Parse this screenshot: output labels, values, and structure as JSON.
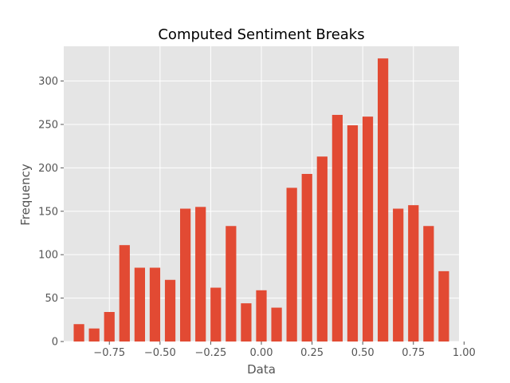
{
  "chart_data": {
    "type": "bar",
    "title": "Computed Sentiment Breaks",
    "xlabel": "Data",
    "ylabel": "Frequency",
    "xlim": [
      -0.975,
      0.975
    ],
    "ylim": [
      0,
      340
    ],
    "xticks": [
      -0.75,
      -0.5,
      -0.25,
      0.0,
      0.25,
      0.5,
      0.75,
      1.0
    ],
    "xtick_labels": [
      "−0.75",
      "−0.50",
      "−0.25",
      "0.00",
      "0.25",
      "0.50",
      "0.75",
      "1.00"
    ],
    "yticks": [
      0,
      50,
      100,
      150,
      200,
      250,
      300
    ],
    "ytick_labels": [
      "0",
      "50",
      "100",
      "150",
      "200",
      "250",
      "300"
    ],
    "bar_width": 0.052,
    "grid": true,
    "colors": {
      "bar": "#E24A33",
      "plot_background": "#E5E5E5",
      "grid": "#FFFFFF",
      "tick_text": "#555555",
      "title_text": "#000000"
    },
    "bars": [
      {
        "x": -0.9,
        "value": 20
      },
      {
        "x": -0.825,
        "value": 15
      },
      {
        "x": -0.75,
        "value": 34
      },
      {
        "x": -0.675,
        "value": 111
      },
      {
        "x": -0.6,
        "value": 85
      },
      {
        "x": -0.525,
        "value": 85
      },
      {
        "x": -0.45,
        "value": 71
      },
      {
        "x": -0.375,
        "value": 153
      },
      {
        "x": -0.3,
        "value": 155
      },
      {
        "x": -0.225,
        "value": 62
      },
      {
        "x": -0.15,
        "value": 133
      },
      {
        "x": -0.075,
        "value": 44
      },
      {
        "x": 0.0,
        "value": 59
      },
      {
        "x": 0.075,
        "value": 39
      },
      {
        "x": 0.15,
        "value": 177
      },
      {
        "x": 0.225,
        "value": 193
      },
      {
        "x": 0.3,
        "value": 213
      },
      {
        "x": 0.375,
        "value": 261
      },
      {
        "x": 0.45,
        "value": 249
      },
      {
        "x": 0.525,
        "value": 259
      },
      {
        "x": 0.6,
        "value": 326
      },
      {
        "x": 0.675,
        "value": 153
      },
      {
        "x": 0.75,
        "value": 157
      },
      {
        "x": 0.825,
        "value": 133
      },
      {
        "x": 0.9,
        "value": 81
      }
    ]
  }
}
